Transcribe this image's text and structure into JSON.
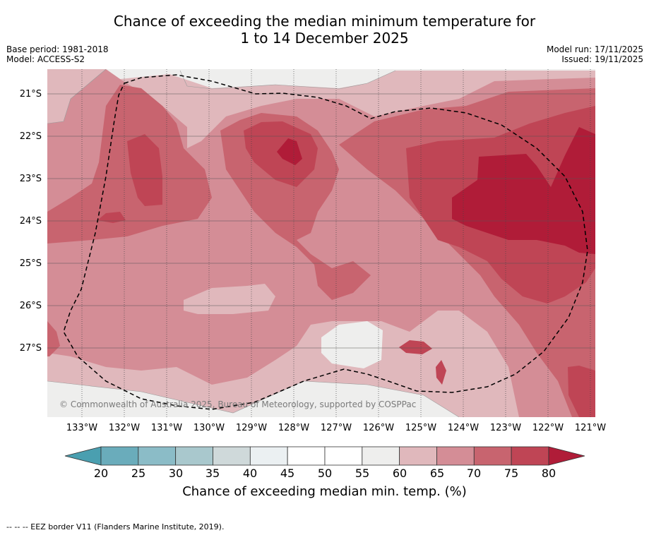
{
  "title_line1": "Chance of exceeding the median minimum temperature for",
  "title_line2": "1 to 14 December 2025",
  "base_period": "Base period: 1981-2018",
  "model": "Model: ACCESS-S2",
  "model_run": "Model run: 17/11/2025",
  "issued": "Issued: 19/11/2025",
  "lat_labels": [
    "21°S",
    "22°S",
    "23°S",
    "24°S",
    "25°S",
    "26°S",
    "27°S"
  ],
  "lon_labels": [
    "133°W",
    "132°W",
    "131°W",
    "130°W",
    "129°W",
    "128°W",
    "127°W",
    "126°W",
    "125°W",
    "124°W",
    "123°W",
    "122°W",
    "121°W"
  ],
  "copyright": "© Commonwealth of Australia 2025, Bureau of Meteorology, supported by COSPPac",
  "colorbar": {
    "ticks": [
      "20",
      "25",
      "30",
      "35",
      "40",
      "45",
      "50",
      "55",
      "60",
      "65",
      "70",
      "75",
      "80"
    ],
    "colors": [
      "#6aacbb",
      "#8bbcc7",
      "#a9c8cd",
      "#cfd9da",
      "#ebf0f2",
      "#ffffff",
      "#ffffff",
      "#eeeeed",
      "#e0b8bc",
      "#d48d96",
      "#c8646f",
      "#bf4555"
    ],
    "under_color": "#4a9fb0",
    "over_color": "#b01c38",
    "label": "Chance of exceeding median min. temp. (%)"
  },
  "colors": {
    "c55": "#eeeeed",
    "c60": "#e0b8bc",
    "c65": "#d48d96",
    "c70": "#c8646f",
    "c75": "#bf4555",
    "c80": "#b01c38"
  },
  "footer": "--  --  -- EEZ border V11 (Flanders Marine Institute, 2019)."
}
